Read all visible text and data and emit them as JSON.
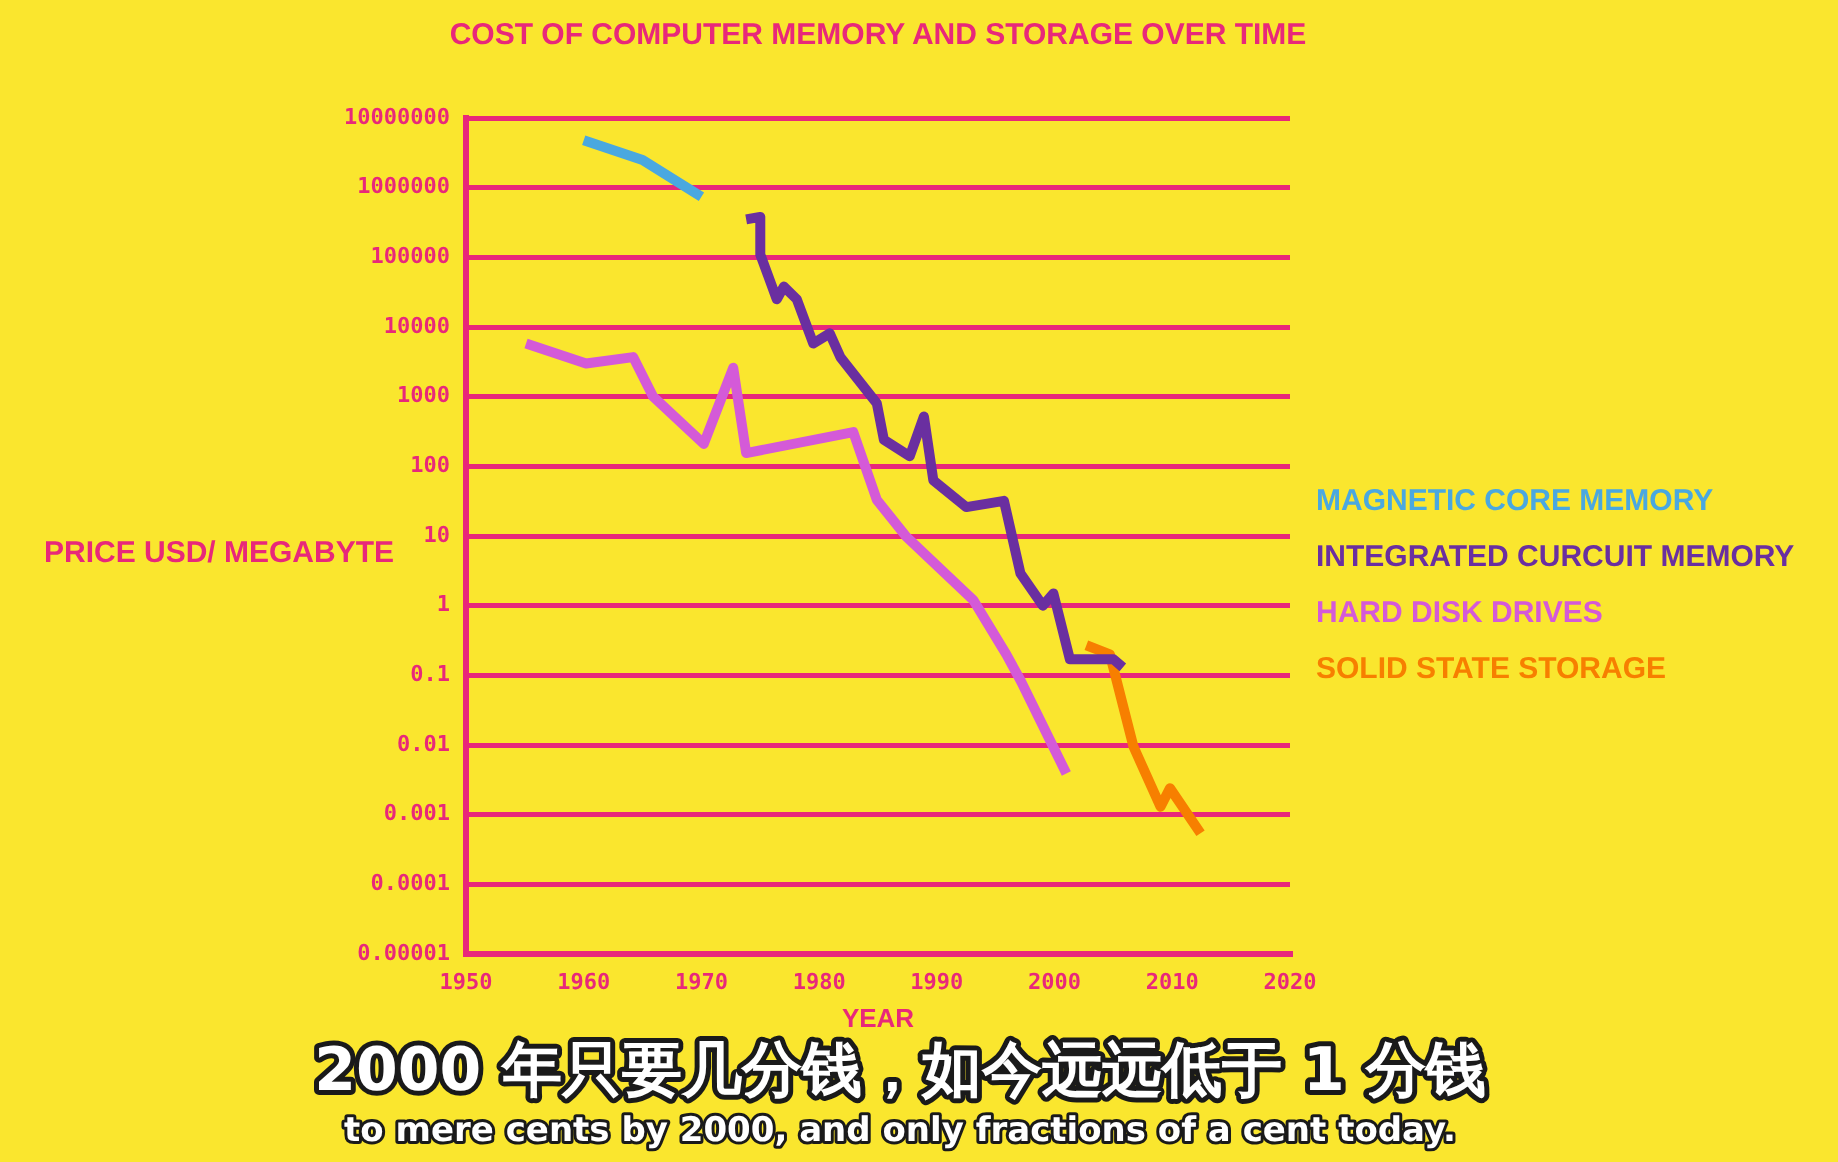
{
  "chart_data": {
    "type": "line",
    "title": "COST OF COMPUTER MEMORY AND STORAGE OVER TIME",
    "xlabel": "YEAR",
    "ylabel": "PRICE USD/ MEGABYTE",
    "annotations": [
      "2000 年只要几分钱，如今远远低于 1 分钱",
      "to mere cents by 2000, and only fractions of a cent today."
    ],
    "log": "y",
    "grid": "y",
    "legend": "right",
    "marker": "none",
    "line_style": "solid",
    "xlim": [
      1950,
      2020
    ],
    "xticks": [
      1950,
      1960,
      1970,
      1980,
      1990,
      2000,
      2010,
      2020
    ],
    "ylim": [
      1e-05,
      10000000
    ],
    "yticks": [
      {
        "value": 1e-05,
        "label": "0.00001"
      },
      0.0001,
      0.001,
      0.01,
      0.1,
      1,
      10,
      100,
      1000,
      10000,
      100000,
      1000000,
      10000000
    ],
    "series": [
      {
        "name": "MAGNETIC CORE MEMORY",
        "color": "#4aa8e0",
        "x": [
          1960,
          1965,
          1970
        ],
        "values": [
          4800000,
          2500000,
          740000
        ]
      },
      {
        "name": "INTEGRATED CURCUIT MEMORY",
        "color": "#6a2fa0",
        "x": [
          1973.8,
          1975,
          1975,
          1976.4,
          1977,
          1978.1,
          1979.5,
          1980.9,
          1981.8,
          1984.9,
          1985.5,
          1987.7,
          1988.9,
          1989.7,
          1992.5,
          1995.7,
          1997.1,
          1999,
          1999.9,
          2001.3,
          2005,
          2005.8
        ],
        "values": [
          350000,
          380000,
          110000,
          25000,
          38000,
          25000,
          5800,
          8100,
          3700,
          800,
          240,
          140,
          520,
          63,
          26,
          32,
          2.9,
          1,
          1.5,
          0.17,
          0.17,
          0.13
        ]
      },
      {
        "name": "HARD DISK DRIVES",
        "color": "#d45ad8",
        "x": [
          1955.1,
          1960.2,
          1964.2,
          1965.9,
          1970.2,
          1972.7,
          1973.8,
          1982.9,
          1984.9,
          1987.4,
          1993.1,
          1995.9,
          1997.1,
          2001
        ],
        "values": [
          5800,
          3000,
          3700,
          1000,
          210,
          2600,
          155,
          310,
          33,
          9.8,
          1.2,
          0.2,
          0.085,
          0.0039
        ]
      },
      {
        "name": "SOLID STATE STORAGE",
        "color": "#f77f00",
        "x": [
          2002.7,
          2004.7,
          2006.7,
          2009,
          2009.8,
          2012.4
        ],
        "values": [
          0.27,
          0.2,
          0.0095,
          0.0013,
          0.0024,
          0.00054
        ]
      }
    ]
  }
}
